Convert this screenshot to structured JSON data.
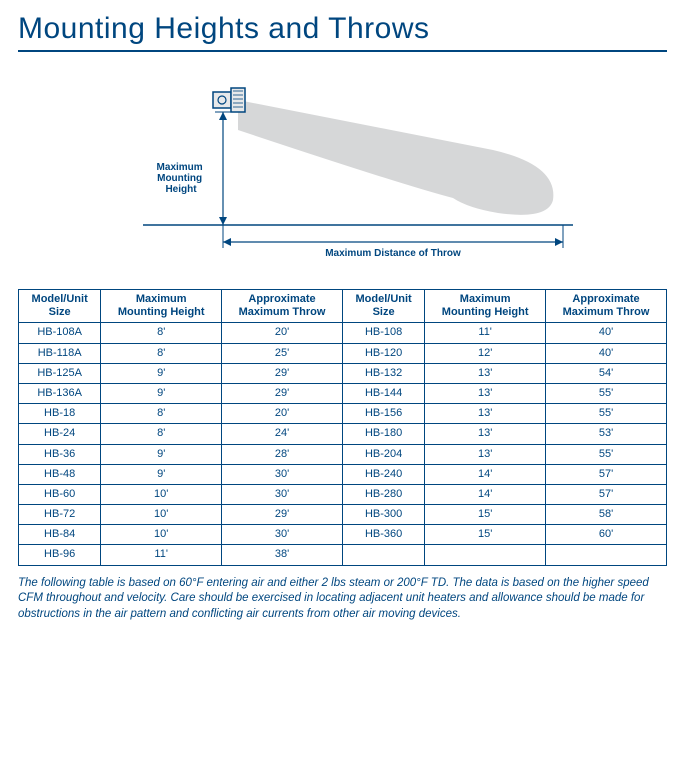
{
  "title": "Mounting Heights and Throws",
  "diagram": {
    "label_height": "Maximum\nMounting\nHeight",
    "label_throw": "Maximum Distance of Throw",
    "colors": {
      "stroke": "#00467f",
      "airflow_fill": "#d6d7d8",
      "heater_fill": "#e8e9ea"
    }
  },
  "table": {
    "headers": [
      "Model/Unit\nSize",
      "Maximum\nMounting Height",
      "Approximate\nMaximum Throw",
      "Model/Unit\nSize",
      "Maximum\nMounting Height",
      "Approximate\nMaximum Throw"
    ],
    "rows": [
      [
        "HB-108A",
        "8'",
        "20'",
        "HB-108",
        "11'",
        "40'"
      ],
      [
        "HB-118A",
        "8'",
        "25'",
        "HB-120",
        "12'",
        "40'"
      ],
      [
        "HB-125A",
        "9'",
        "29'",
        "HB-132",
        "13'",
        "54'"
      ],
      [
        "HB-136A",
        "9'",
        "29'",
        "HB-144",
        "13'",
        "55'"
      ],
      [
        "HB-18",
        "8'",
        "20'",
        "HB-156",
        "13'",
        "55'"
      ],
      [
        "HB-24",
        "8'",
        "24'",
        "HB-180",
        "13'",
        "53'"
      ],
      [
        "HB-36",
        "9'",
        "28'",
        "HB-204",
        "13'",
        "55'"
      ],
      [
        "HB-48",
        "9'",
        "30'",
        "HB-240",
        "14'",
        "57'"
      ],
      [
        "HB-60",
        "10'",
        "30'",
        "HB-280",
        "14'",
        "57'"
      ],
      [
        "HB-72",
        "10'",
        "29'",
        "HB-300",
        "15'",
        "58'"
      ],
      [
        "HB-84",
        "10'",
        "30'",
        "HB-360",
        "15'",
        "60'"
      ],
      [
        "HB-96",
        "11'",
        "38'",
        "",
        "",
        ""
      ]
    ]
  },
  "footnote": "The following table is based on 60°F entering air and either 2 lbs steam or 200°F TD. The data is based on the higher speed CFM throughout and velocity.  Care should be exercised in locating adjacent unit heaters and allowance should be made for obstructions in the air pattern and conflicting air currents from other air moving devices."
}
